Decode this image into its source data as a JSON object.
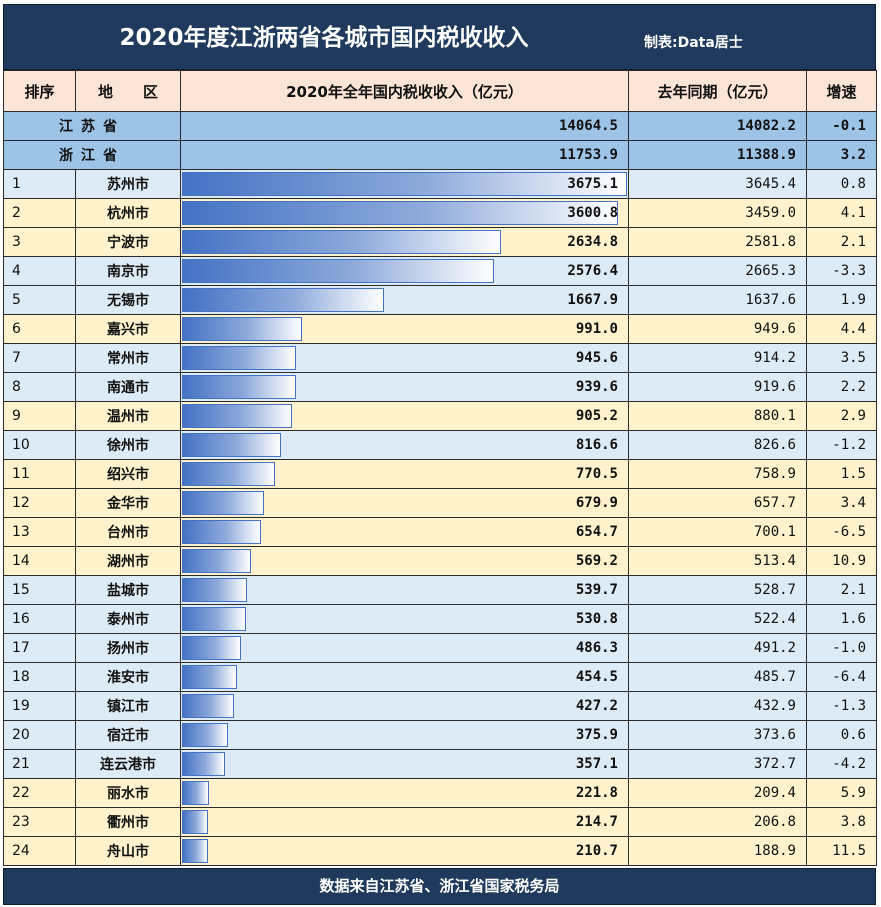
{
  "title": "2020年度江浙两省各城市国内税收收入",
  "credit": "制表:Data居士",
  "headers": {
    "rank": "排序",
    "region": "地　　区",
    "value": "2020年全年国内税收收入（亿元）",
    "prev": "去年同期（亿元）",
    "growth": "增速"
  },
  "provinces": [
    {
      "name": "江苏省",
      "value": "14064.5",
      "prev": "14082.2",
      "growth": "-0.1"
    },
    {
      "name": "浙江省",
      "value": "11753.9",
      "prev": "11388.9",
      "growth": "3.2"
    }
  ],
  "footer": "数据来自江苏省、浙江省国家税务局",
  "colors": {
    "header_bg": "#1f3a5c",
    "table_header_bg": "#fce4d6",
    "province_bg": "#9dc3e6",
    "jiangsu_row_bg": "#ddebf7",
    "zhejiang_row_bg": "#fff2cc",
    "bar": "#4472c4",
    "negative": "#c00000"
  },
  "chart_data": {
    "type": "table",
    "title": "2020年度江浙两省各城市国内税收收入",
    "bar_column": "2020年全年国内税收收入（亿元）",
    "rows": [
      {
        "rank": "1",
        "city": "苏州市",
        "province": "js",
        "value": 3675.1,
        "value_text": "3675.1",
        "prev": "3645.4",
        "growth": "0.8"
      },
      {
        "rank": "2",
        "city": "杭州市",
        "province": "zj",
        "value": 3600.8,
        "value_text": "3600.8",
        "prev": "3459.0",
        "growth": "4.1"
      },
      {
        "rank": "3",
        "city": "宁波市",
        "province": "zj",
        "value": 2634.8,
        "value_text": "2634.8",
        "prev": "2581.8",
        "growth": "2.1"
      },
      {
        "rank": "4",
        "city": "南京市",
        "province": "js",
        "value": 2576.4,
        "value_text": "2576.4",
        "prev": "2665.3",
        "growth": "-3.3"
      },
      {
        "rank": "5",
        "city": "无锡市",
        "province": "js",
        "value": 1667.9,
        "value_text": "1667.9",
        "prev": "1637.6",
        "growth": "1.9"
      },
      {
        "rank": "6",
        "city": "嘉兴市",
        "province": "zj",
        "value": 991.0,
        "value_text": "991.0",
        "prev": "949.6",
        "growth": "4.4"
      },
      {
        "rank": "7",
        "city": "常州市",
        "province": "js",
        "value": 945.6,
        "value_text": "945.6",
        "prev": "914.2",
        "growth": "3.5"
      },
      {
        "rank": "8",
        "city": "南通市",
        "province": "js",
        "value": 939.6,
        "value_text": "939.6",
        "prev": "919.6",
        "growth": "2.2"
      },
      {
        "rank": "9",
        "city": "温州市",
        "province": "zj",
        "value": 905.2,
        "value_text": "905.2",
        "prev": "880.1",
        "growth": "2.9"
      },
      {
        "rank": "10",
        "city": "徐州市",
        "province": "js",
        "value": 816.6,
        "value_text": "816.6",
        "prev": "826.6",
        "growth": "-1.2"
      },
      {
        "rank": "11",
        "city": "绍兴市",
        "province": "zj",
        "value": 770.5,
        "value_text": "770.5",
        "prev": "758.9",
        "growth": "1.5"
      },
      {
        "rank": "12",
        "city": "金华市",
        "province": "zj",
        "value": 679.9,
        "value_text": "679.9",
        "prev": "657.7",
        "growth": "3.4"
      },
      {
        "rank": "13",
        "city": "台州市",
        "province": "zj",
        "value": 654.7,
        "value_text": "654.7",
        "prev": "700.1",
        "growth": "-6.5"
      },
      {
        "rank": "14",
        "city": "湖州市",
        "province": "zj",
        "value": 569.2,
        "value_text": "569.2",
        "prev": "513.4",
        "growth": "10.9"
      },
      {
        "rank": "15",
        "city": "盐城市",
        "province": "js",
        "value": 539.7,
        "value_text": "539.7",
        "prev": "528.7",
        "growth": "2.1"
      },
      {
        "rank": "16",
        "city": "泰州市",
        "province": "js",
        "value": 530.8,
        "value_text": "530.8",
        "prev": "522.4",
        "growth": "1.6"
      },
      {
        "rank": "17",
        "city": "扬州市",
        "province": "js",
        "value": 486.3,
        "value_text": "486.3",
        "prev": "491.2",
        "growth": "-1.0"
      },
      {
        "rank": "18",
        "city": "淮安市",
        "province": "js",
        "value": 454.5,
        "value_text": "454.5",
        "prev": "485.7",
        "growth": "-6.4"
      },
      {
        "rank": "19",
        "city": "镇江市",
        "province": "js",
        "value": 427.2,
        "value_text": "427.2",
        "prev": "432.9",
        "growth": "-1.3"
      },
      {
        "rank": "20",
        "city": "宿迁市",
        "province": "js",
        "value": 375.9,
        "value_text": "375.9",
        "prev": "373.6",
        "growth": "0.6"
      },
      {
        "rank": "21",
        "city": "连云港市",
        "province": "js",
        "value": 357.1,
        "value_text": "357.1",
        "prev": "372.7",
        "growth": "-4.2"
      },
      {
        "rank": "22",
        "city": "丽水市",
        "province": "zj",
        "value": 221.8,
        "value_text": "221.8",
        "prev": "209.4",
        "growth": "5.9"
      },
      {
        "rank": "23",
        "city": "衢州市",
        "province": "zj",
        "value": 214.7,
        "value_text": "214.7",
        "prev": "206.8",
        "growth": "3.8"
      },
      {
        "rank": "24",
        "city": "舟山市",
        "province": "zj",
        "value": 210.7,
        "value_text": "210.7",
        "prev": "188.9",
        "growth": "11.5"
      }
    ]
  }
}
